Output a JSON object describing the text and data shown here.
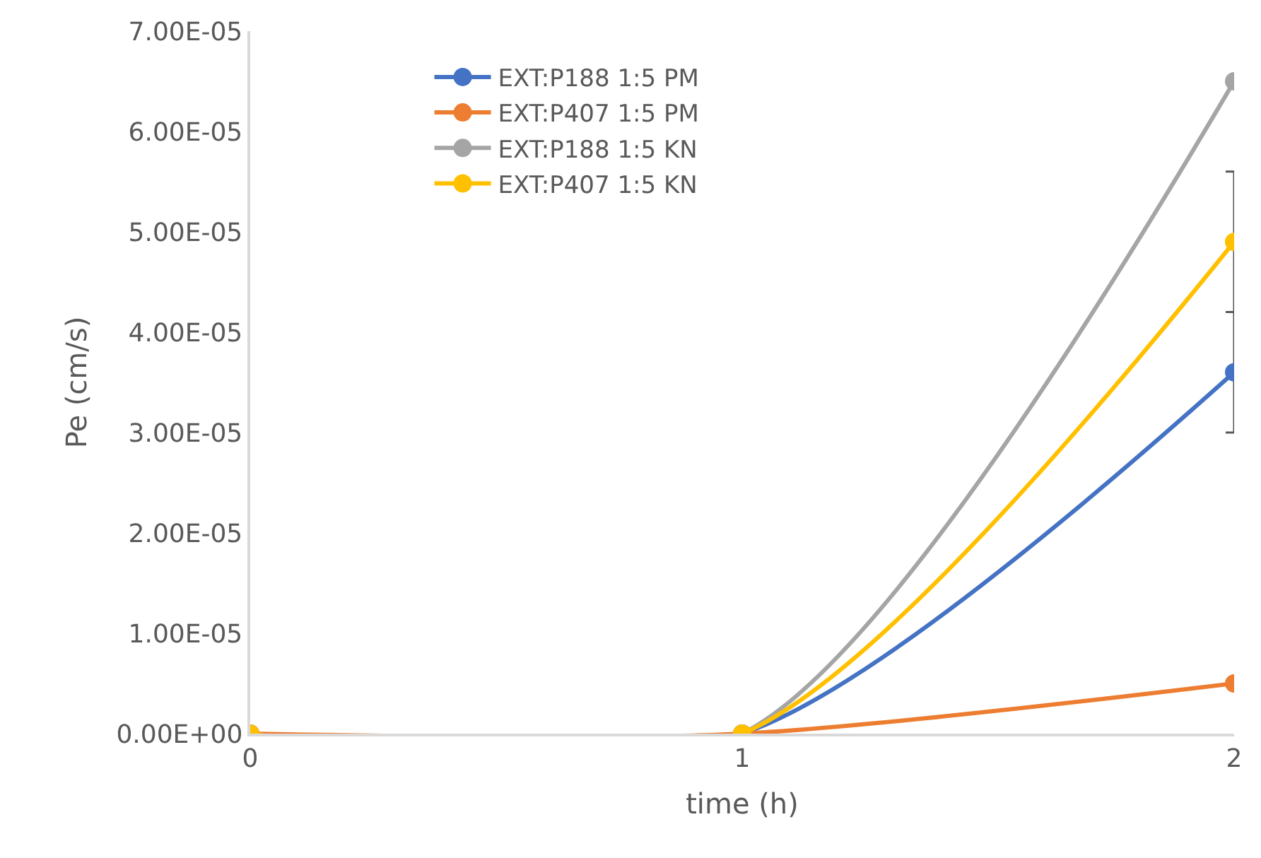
{
  "chart_data": {
    "type": "line",
    "xlabel": "time (h)",
    "ylabel": "Pe (cm/s)",
    "x": [
      0,
      1,
      2
    ],
    "series": [
      {
        "name": "EXT:P188 1:5 PM",
        "color": "#4472c4",
        "values": [
          0,
          0,
          3.6e-05
        ],
        "errors": [
          null,
          null,
          6e-06
        ]
      },
      {
        "name": "EXT:P407 1:5 PM",
        "color": "#ed7d31",
        "values": [
          0,
          0,
          5e-06
        ]
      },
      {
        "name": "EXT:P188 1:5 KN",
        "color": "#a5a5a5",
        "values": [
          0,
          0,
          6.5e-05
        ]
      },
      {
        "name": "EXT:P407 1:5 KN",
        "color": "#ffc000",
        "values": [
          0,
          0,
          4.9e-05
        ],
        "errors": [
          null,
          null,
          7e-06
        ]
      }
    ],
    "xlim": [
      0,
      2
    ],
    "xticks": [
      0,
      1,
      2
    ],
    "ylim": [
      0,
      7e-05
    ],
    "yticks": [
      {
        "value": 0,
        "label": "0.00E+00"
      },
      {
        "value": 1e-05,
        "label": "1.00E-05"
      },
      {
        "value": 2e-05,
        "label": "2.00E-05"
      },
      {
        "value": 3e-05,
        "label": "3.00E-05"
      },
      {
        "value": 4e-05,
        "label": "4.00E-05"
      },
      {
        "value": 5e-05,
        "label": "5.00E-05"
      },
      {
        "value": 6e-05,
        "label": "6.00E-05"
      },
      {
        "value": 7e-05,
        "label": "7.00E-05"
      }
    ],
    "legend": "top left",
    "marker": "circle",
    "line_style": "solid"
  }
}
